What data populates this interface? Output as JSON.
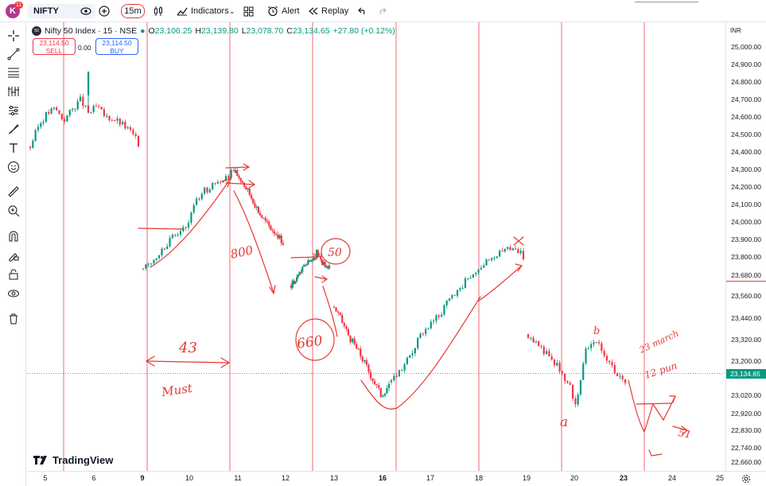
{
  "toolbar": {
    "avatar_letter": "K",
    "notification_count": "11",
    "symbol": "NIFTY",
    "interval": "15m",
    "indicators_label": "Indicators",
    "alert_label": "Alert",
    "replay_label": "Replay"
  },
  "left_toolbar_icons": [
    "crosshair-icon",
    "trend-line-icon",
    "fib-icon",
    "pattern-icon",
    "projection-icon",
    "brush-icon",
    "text-icon",
    "emoji-icon",
    "ruler-icon",
    "zoom-in-icon",
    "magnet-icon",
    "lock-drawing-icon",
    "lock-icon",
    "eye-icon",
    "trash-icon"
  ],
  "legend": {
    "logo_text": "50",
    "title": "Nifty 50 Index · 15 · NSE",
    "o_label": "O",
    "o_value": "23,106.25",
    "h_label": "H",
    "h_value": "23,139.80",
    "l_label": "L",
    "l_value": "23,078.70",
    "c_label": "C",
    "c_value": "23,134.65",
    "change": "+27.80 (+0.12%)"
  },
  "trade": {
    "sell_price": "23,114.50",
    "sell_label": "SELL",
    "spread": "0.00",
    "buy_price": "23,114.50",
    "buy_label": "BUY"
  },
  "branding": "TradingView",
  "price_scale": {
    "currency": "INR",
    "last_price": "23,134.65"
  },
  "colors": {
    "up": "#089981",
    "down": "#f23645",
    "annotation": "#e53935",
    "session_line": "#f23645"
  },
  "annotations": [
    "800",
    "50",
    "660",
    "43",
    "Must",
    "x",
    "b",
    "a",
    "23 march",
    "12 pun",
    "51"
  ],
  "chart_data": {
    "type": "candlestick",
    "symbol": "Nifty 50 Index",
    "interval": "15",
    "exchange": "NSE",
    "ylim": [
      22620,
      25080
    ],
    "y_ticks": [
      "25,000.00",
      "24,900.00",
      "24,800.00",
      "24,700.00",
      "24,600.00",
      "24,500.00",
      "24,400.00",
      "24,300.00",
      "24,200.00",
      "24,100.00",
      "24,000.00",
      "23,900.00",
      "23,800.00",
      "23,680.00",
      "23,560.00",
      "23,440.00",
      "23,320.00",
      "23,200.00",
      "23,020.00",
      "22,920.00",
      "22,830.00",
      "22,740.00",
      "22,660.00"
    ],
    "x_ticks": [
      "5",
      "6",
      "9",
      "10",
      "11",
      "12",
      "13",
      "16",
      "17",
      "18",
      "19",
      "20",
      "23",
      "24",
      "25"
    ],
    "x_bold": [
      "9",
      "16",
      "23"
    ],
    "segments": [
      {
        "day": "5-6",
        "path": [
          24430,
          24550,
          24620,
          24650,
          24580,
          24640,
          24700,
          24620,
          24660,
          24600,
          24590,
          24560,
          24520,
          24450
        ]
      },
      {
        "day": "9-10",
        "path": [
          23720,
          23760,
          23820,
          23870,
          23920,
          23950,
          24000,
          24120,
          24180,
          24200,
          24230,
          24260,
          24290
        ]
      },
      {
        "day": "10-12",
        "path": [
          24280,
          24240,
          24180,
          24120,
          24050,
          24000,
          23960,
          23930,
          23880
        ]
      },
      {
        "day": "12-13",
        "path": [
          23620,
          23680,
          23740,
          23780,
          23820,
          23760,
          23730
        ]
      },
      {
        "day": "13-16",
        "path": [
          23500,
          23420,
          23330,
          23260,
          23180,
          23100,
          23020,
          23080
        ]
      },
      {
        "day": "16-19",
        "path": [
          23090,
          23150,
          23240,
          23360,
          23420,
          23480,
          23560,
          23620,
          23700,
          23750,
          23800,
          23830,
          23860,
          23800
        ]
      },
      {
        "day": "19-23",
        "path": [
          23350,
          23300,
          23250,
          23200,
          23150,
          23080,
          22960,
          23260,
          23320,
          23280,
          23200,
          23120,
          23080
        ]
      }
    ]
  }
}
